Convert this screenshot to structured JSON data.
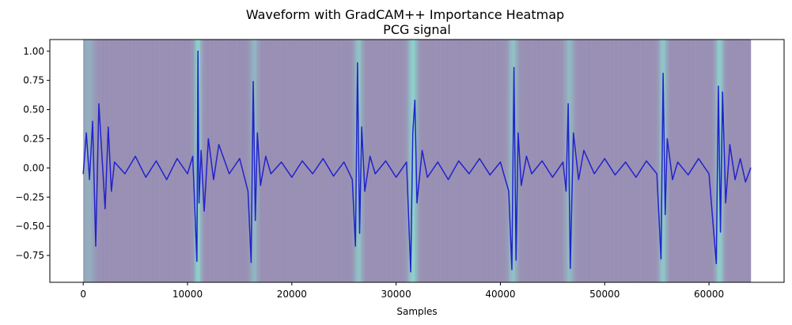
{
  "chart_data": {
    "type": "line",
    "title": "Waveform with GradCAM++ Importance Heatmap",
    "subtitle": "PCG signal",
    "xlabel": "Samples",
    "ylabel": "",
    "xlim": [
      -3200,
      67200
    ],
    "ylim": [
      -0.98,
      1.1
    ],
    "x_extent": [
      0,
      64000
    ],
    "xticks": [
      0,
      10000,
      20000,
      30000,
      40000,
      50000,
      60000
    ],
    "yticks": [
      -0.75,
      -0.5,
      -0.25,
      0.0,
      0.25,
      0.5,
      0.75,
      1.0
    ],
    "xtick_labels": [
      "0",
      "10000",
      "20000",
      "30000",
      "40000",
      "50000",
      "60000"
    ],
    "ytick_labels": [
      "−0.75",
      "−0.50",
      "−0.25",
      "0.00",
      "0.25",
      "0.50",
      "0.75",
      "1.00"
    ],
    "grid": false,
    "legend": "none",
    "colors": {
      "signal": "#2222cc",
      "heatmap_low": "#9a8ab2",
      "heatmap_high": "#8ecfcb"
    },
    "heatmap_peaks": [
      {
        "x": 500,
        "importance": 0.45,
        "width": 600
      },
      {
        "x": 11000,
        "importance": 0.95,
        "width": 350
      },
      {
        "x": 16400,
        "importance": 0.55,
        "width": 400
      },
      {
        "x": 26400,
        "importance": 0.75,
        "width": 400
      },
      {
        "x": 31600,
        "importance": 0.95,
        "width": 450
      },
      {
        "x": 41200,
        "importance": 0.7,
        "width": 450
      },
      {
        "x": 46600,
        "importance": 0.6,
        "width": 450
      },
      {
        "x": 55600,
        "importance": 0.8,
        "width": 400
      },
      {
        "x": 61000,
        "importance": 0.9,
        "width": 400
      }
    ],
    "series": [
      {
        "x": [
          0,
          300,
          600,
          900,
          1200,
          1500,
          1800,
          2100,
          2400,
          2700,
          3000,
          4000,
          5000,
          6000,
          7000,
          8000,
          9000,
          10000,
          10500,
          10900,
          11000,
          11100,
          11300,
          11600,
          12000,
          12500,
          13000,
          14000,
          15000,
          15800,
          16100,
          16300,
          16500,
          16700,
          17000,
          17500,
          18000,
          19000,
          20000,
          21000,
          22000,
          23000,
          24000,
          25000,
          25800,
          26100,
          26300,
          26500,
          26700,
          27000,
          27500,
          28000,
          29000,
          30000,
          31000,
          31400,
          31600,
          31800,
          32000,
          32500,
          33000,
          34000,
          35000,
          36000,
          37000,
          38000,
          39000,
          40000,
          40800,
          41100,
          41300,
          41500,
          41700,
          42000,
          42500,
          43000,
          44000,
          45000,
          46000,
          46300,
          46500,
          46700,
          47000,
          47500,
          48000,
          49000,
          50000,
          51000,
          52000,
          53000,
          54000,
          55000,
          55400,
          55600,
          55800,
          56000,
          56500,
          57000,
          58000,
          59000,
          60000,
          60700,
          60900,
          61100,
          61300,
          61600,
          62000,
          62500,
          63000,
          63500,
          64000
        ],
        "y": [
          -0.05,
          0.3,
          -0.1,
          0.4,
          -0.67,
          0.55,
          0.1,
          -0.35,
          0.35,
          -0.2,
          0.05,
          -0.05,
          0.1,
          -0.08,
          0.06,
          -0.1,
          0.08,
          -0.05,
          0.1,
          -0.8,
          1.0,
          -0.3,
          0.15,
          -0.37,
          0.25,
          -0.1,
          0.2,
          -0.05,
          0.08,
          -0.2,
          -0.81,
          0.74,
          -0.45,
          0.3,
          -0.15,
          0.1,
          -0.05,
          0.05,
          -0.08,
          0.06,
          -0.05,
          0.08,
          -0.07,
          0.05,
          -0.1,
          -0.67,
          0.9,
          -0.56,
          0.35,
          -0.2,
          0.1,
          -0.05,
          0.06,
          -0.08,
          0.05,
          -0.89,
          0.3,
          0.58,
          -0.3,
          0.15,
          -0.08,
          0.05,
          -0.1,
          0.06,
          -0.05,
          0.08,
          -0.06,
          0.05,
          -0.2,
          -0.87,
          0.86,
          -0.79,
          0.3,
          -0.15,
          0.1,
          -0.05,
          0.06,
          -0.08,
          0.05,
          -0.2,
          0.55,
          -0.86,
          0.3,
          -0.1,
          0.15,
          -0.05,
          0.08,
          -0.06,
          0.05,
          -0.08,
          0.06,
          -0.05,
          -0.78,
          0.81,
          -0.4,
          0.25,
          -0.1,
          0.05,
          -0.06,
          0.08,
          -0.05,
          -0.82,
          0.7,
          -0.55,
          0.65,
          -0.3,
          0.2,
          -0.1,
          0.08,
          -0.12,
          0.0
        ]
      }
    ]
  }
}
